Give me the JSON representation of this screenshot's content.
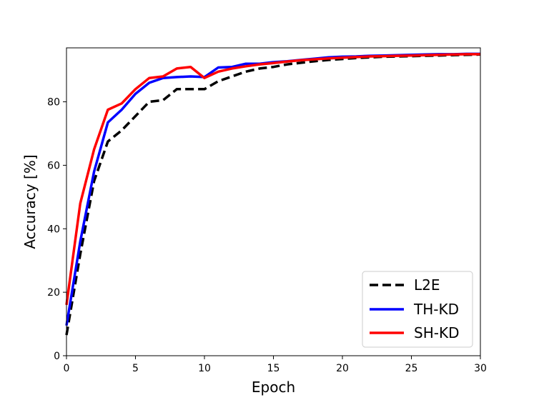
{
  "chart_data": {
    "type": "line",
    "xlabel": "Epoch",
    "ylabel": "Accuracy [%]",
    "xlim": [
      0,
      30
    ],
    "ylim": [
      0,
      97
    ],
    "xticks": [
      0,
      5,
      10,
      15,
      20,
      25,
      30
    ],
    "yticks": [
      0,
      20,
      40,
      60,
      80
    ],
    "grid": false,
    "legend_position": "bottom-right",
    "x": [
      0,
      1,
      2,
      3,
      4,
      5,
      6,
      7,
      8,
      9,
      10,
      11,
      12,
      13,
      14,
      15,
      16,
      17,
      18,
      19,
      20,
      21,
      22,
      23,
      24,
      25,
      26,
      27,
      28,
      29,
      30
    ],
    "series": [
      {
        "name": "L2E",
        "color": "#000000",
        "style": "dashed",
        "values": [
          6.5,
          32,
          55,
          67.5,
          71,
          75.5,
          80,
          80.5,
          84,
          84,
          84,
          86.5,
          88,
          89.5,
          90.5,
          91,
          91.8,
          92.3,
          92.8,
          93.2,
          93.5,
          93.8,
          94,
          94.2,
          94.3,
          94.4,
          94.5,
          94.6,
          94.7,
          94.8,
          94.9
        ]
      },
      {
        "name": "TH-KD",
        "color": "#0000ff",
        "style": "solid",
        "values": [
          9.5,
          36,
          58,
          73.5,
          77.5,
          82.5,
          86,
          87.5,
          87.8,
          88,
          87.8,
          90.8,
          91,
          92,
          92,
          92.5,
          92.8,
          93.2,
          93.6,
          94,
          94.2,
          94.3,
          94.5,
          94.6,
          94.7,
          94.8,
          94.9,
          95,
          95,
          95.1,
          95.1
        ]
      },
      {
        "name": "SH-KD",
        "color": "#ff0000",
        "style": "solid",
        "values": [
          16,
          48,
          65,
          77.5,
          79.5,
          84,
          87.5,
          88,
          90.5,
          91,
          87.5,
          89.5,
          90.5,
          91.2,
          91.8,
          92.2,
          92.7,
          93.1,
          93.4,
          93.7,
          93.9,
          94.1,
          94.3,
          94.4,
          94.5,
          94.6,
          94.7,
          94.8,
          94.9,
          95,
          95
        ]
      }
    ]
  }
}
